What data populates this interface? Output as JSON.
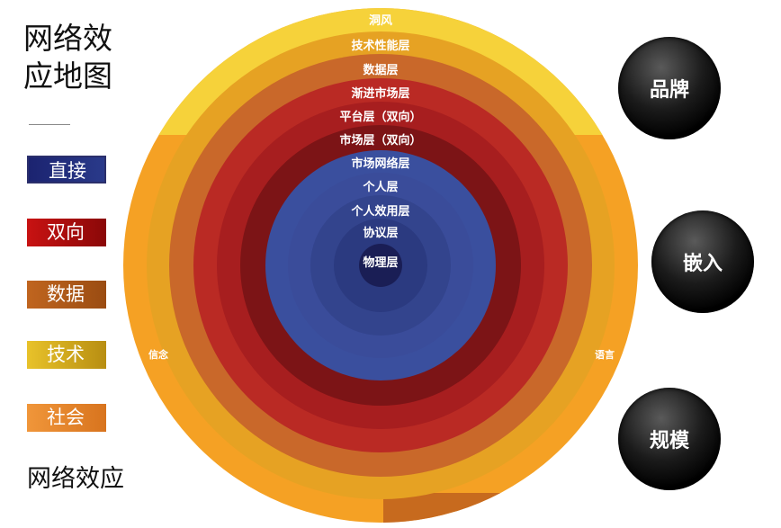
{
  "title": "网络效\n应地图",
  "footer": "网络效应",
  "legend": [
    {
      "label": "直接",
      "color": "#1b2370",
      "color2": "#2a3a8a"
    },
    {
      "label": "双向",
      "color": "#c81212",
      "color2": "#8a0808"
    },
    {
      "label": "数据",
      "color": "#c0651f",
      "color2": "#9a4c12"
    },
    {
      "label": "技术",
      "color": "#e8c22a",
      "color2": "#b88e12"
    },
    {
      "label": "社会",
      "color": "#f0963a",
      "color2": "#d8741e"
    }
  ],
  "rings": [
    {
      "label": "洞风",
      "color": "#f5a124",
      "shadow": "#f6d23a"
    },
    {
      "label": "技术性能层",
      "color": "#e6a223"
    },
    {
      "label": "数据层",
      "color": "#c9682a"
    },
    {
      "label": "渐进市场层",
      "color": "#ba2a24"
    },
    {
      "label": "平台层（双向）",
      "color": "#a71e1f"
    },
    {
      "label": "市场层（双向）",
      "color": "#7c1416"
    },
    {
      "label": "市场网络层",
      "color": "#3a4f9e"
    },
    {
      "label": "个人层",
      "color": "#3a4c9a"
    },
    {
      "label": "个人效用层",
      "color": "#33448d"
    },
    {
      "label": "协议层",
      "color": "#2b3a80"
    },
    {
      "label": "物理层",
      "color": "#1a1e55"
    }
  ],
  "side_labels": {
    "left": "信念",
    "right": "语言"
  },
  "bubbles": {
    "brand": "品牌",
    "embed": "嵌入",
    "scale": "规模"
  }
}
